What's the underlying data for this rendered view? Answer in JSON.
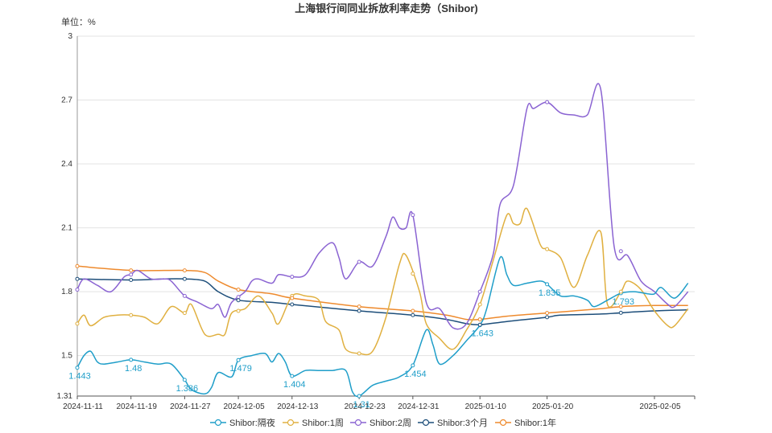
{
  "chart_data": {
    "type": "line",
    "title": "上海银行间同业拆放利率走势（Shibor)",
    "unit_label": "单位：%",
    "ylim": [
      1.31,
      3
    ],
    "yticks": [
      1.31,
      1.5,
      1.8,
      2.1,
      2.4,
      2.7,
      3
    ],
    "xlim": [
      "2024-11-11",
      "2025-02-11"
    ],
    "xticks": [
      "2024-11-11",
      "2024-11-19",
      "2024-11-27",
      "2024-12-05",
      "2024-12-13",
      "2024-12-23",
      "2024-12-31",
      "2025-01-10",
      "2025-01-20",
      "2025-02-05"
    ],
    "grid": "horizontal",
    "legend_position": "bottom",
    "series": [
      {
        "name": "Shibor:隔夜",
        "color": "#1f9ec9",
        "points": [
          [
            "2024-11-11",
            1.443
          ],
          [
            "2024-11-12",
            1.5
          ],
          [
            "2024-11-13",
            1.52
          ],
          [
            "2024-11-14",
            1.47
          ],
          [
            "2024-11-15",
            1.46
          ],
          [
            "2024-11-17",
            1.47
          ],
          [
            "2024-11-19",
            1.48
          ],
          [
            "2024-11-21",
            1.47
          ],
          [
            "2024-11-23",
            1.46
          ],
          [
            "2024-11-25",
            1.46
          ],
          [
            "2024-11-27",
            1.386
          ],
          [
            "2024-11-28",
            1.34
          ],
          [
            "2024-11-30",
            1.32
          ],
          [
            "2024-12-01",
            1.35
          ],
          [
            "2024-12-02",
            1.42
          ],
          [
            "2024-12-04",
            1.4
          ],
          [
            "2024-12-05",
            1.479
          ],
          [
            "2024-12-07",
            1.5
          ],
          [
            "2024-12-09",
            1.51
          ],
          [
            "2024-12-10",
            1.47
          ],
          [
            "2024-12-11",
            1.51
          ],
          [
            "2024-12-12",
            1.47
          ],
          [
            "2024-12-13",
            1.404
          ],
          [
            "2024-12-15",
            1.43
          ],
          [
            "2024-12-17",
            1.43
          ],
          [
            "2024-12-19",
            1.43
          ],
          [
            "2024-12-21",
            1.43
          ],
          [
            "2024-12-22",
            1.33
          ],
          [
            "2024-12-23",
            1.31
          ],
          [
            "2024-12-25",
            1.36
          ],
          [
            "2024-12-27",
            1.38
          ],
          [
            "2024-12-29",
            1.4
          ],
          [
            "2024-12-31",
            1.454
          ],
          [
            "2025-01-02",
            1.62
          ],
          [
            "2025-01-03",
            1.55
          ],
          [
            "2025-01-04",
            1.46
          ],
          [
            "2025-01-06",
            1.5
          ],
          [
            "2025-01-08",
            1.57
          ],
          [
            "2025-01-10",
            1.643
          ],
          [
            "2025-01-11",
            1.72
          ],
          [
            "2025-01-13",
            1.96
          ],
          [
            "2025-01-14",
            1.88
          ],
          [
            "2025-01-15",
            1.83
          ],
          [
            "2025-01-17",
            1.84
          ],
          [
            "2025-01-19",
            1.85
          ],
          [
            "2025-01-20",
            1.835
          ],
          [
            "2025-01-22",
            1.78
          ],
          [
            "2025-01-24",
            1.78
          ],
          [
            "2025-01-26",
            1.76
          ],
          [
            "2025-01-27",
            1.73
          ],
          [
            "2025-01-29",
            1.76
          ],
          [
            "2025-01-31",
            1.793
          ],
          [
            "2025-02-02",
            1.8
          ],
          [
            "2025-02-04",
            1.79
          ],
          [
            "2025-02-05",
            1.79
          ],
          [
            "2025-02-06",
            1.82
          ],
          [
            "2025-02-08",
            1.77
          ],
          [
            "2025-02-10",
            1.84
          ]
        ]
      },
      {
        "name": "Shibor:1周",
        "color": "#e0b040",
        "points": [
          [
            "2024-11-11",
            1.65
          ],
          [
            "2024-11-12",
            1.69
          ],
          [
            "2024-11-13",
            1.64
          ],
          [
            "2024-11-15",
            1.68
          ],
          [
            "2024-11-17",
            1.69
          ],
          [
            "2024-11-19",
            1.69
          ],
          [
            "2024-11-21",
            1.68
          ],
          [
            "2024-11-23",
            1.65
          ],
          [
            "2024-11-25",
            1.73
          ],
          [
            "2024-11-27",
            1.7
          ],
          [
            "2024-11-28",
            1.74
          ],
          [
            "2024-11-30",
            1.6
          ],
          [
            "2024-12-02",
            1.6
          ],
          [
            "2024-12-03",
            1.6
          ],
          [
            "2024-12-04",
            1.7
          ],
          [
            "2024-12-06",
            1.72
          ],
          [
            "2024-12-08",
            1.78
          ],
          [
            "2024-12-10",
            1.7
          ],
          [
            "2024-12-11",
            1.65
          ],
          [
            "2024-12-13",
            1.78
          ],
          [
            "2024-12-15",
            1.78
          ],
          [
            "2024-12-17",
            1.76
          ],
          [
            "2024-12-18",
            1.66
          ],
          [
            "2024-12-20",
            1.62
          ],
          [
            "2024-12-21",
            1.53
          ],
          [
            "2024-12-23",
            1.51
          ],
          [
            "2024-12-25",
            1.52
          ],
          [
            "2024-12-27",
            1.68
          ],
          [
            "2024-12-29",
            1.93
          ],
          [
            "2024-12-30",
            1.97
          ],
          [
            "2025-01-01",
            1.8
          ],
          [
            "2025-01-02",
            1.65
          ],
          [
            "2025-01-04",
            1.58
          ],
          [
            "2025-01-06",
            1.53
          ],
          [
            "2025-01-08",
            1.62
          ],
          [
            "2025-01-10",
            1.74
          ],
          [
            "2025-01-12",
            1.95
          ],
          [
            "2025-01-14",
            2.16
          ],
          [
            "2025-01-15",
            2.12
          ],
          [
            "2025-01-16",
            2.12
          ],
          [
            "2025-01-17",
            2.19
          ],
          [
            "2025-01-19",
            2.02
          ],
          [
            "2025-01-20",
            2.0
          ],
          [
            "2025-01-22",
            1.96
          ],
          [
            "2025-01-24",
            1.82
          ],
          [
            "2025-01-26",
            1.97
          ],
          [
            "2025-01-28",
            2.08
          ],
          [
            "2025-01-29",
            1.74
          ],
          [
            "2025-01-31",
            1.8
          ],
          [
            "2025-02-01",
            1.85
          ],
          [
            "2025-02-03",
            1.81
          ],
          [
            "2025-02-05",
            1.71
          ],
          [
            "2025-02-07",
            1.64
          ],
          [
            "2025-02-08",
            1.64
          ],
          [
            "2025-02-10",
            1.72
          ]
        ]
      },
      {
        "name": "Shibor:2周",
        "color": "#8a63d2",
        "points": [
          [
            "2024-11-11",
            1.81
          ],
          [
            "2024-11-12",
            1.86
          ],
          [
            "2024-11-14",
            1.83
          ],
          [
            "2024-11-16",
            1.8
          ],
          [
            "2024-11-18",
            1.87
          ],
          [
            "2024-11-19",
            1.88
          ],
          [
            "2024-11-20",
            1.9
          ],
          [
            "2024-11-22",
            1.86
          ],
          [
            "2024-11-24",
            1.86
          ],
          [
            "2024-11-25",
            1.85
          ],
          [
            "2024-11-27",
            1.78
          ],
          [
            "2024-11-29",
            1.75
          ],
          [
            "2024-12-01",
            1.72
          ],
          [
            "2024-12-02",
            1.74
          ],
          [
            "2024-12-03",
            1.68
          ],
          [
            "2024-12-04",
            1.75
          ],
          [
            "2024-12-06",
            1.8
          ],
          [
            "2024-12-07",
            1.85
          ],
          [
            "2024-12-08",
            1.86
          ],
          [
            "2024-12-10",
            1.84
          ],
          [
            "2024-12-11",
            1.88
          ],
          [
            "2024-12-13",
            1.87
          ],
          [
            "2024-12-15",
            1.88
          ],
          [
            "2024-12-17",
            1.98
          ],
          [
            "2024-12-19",
            2.03
          ],
          [
            "2024-12-20",
            1.96
          ],
          [
            "2024-12-21",
            1.86
          ],
          [
            "2024-12-23",
            1.94
          ],
          [
            "2024-12-25",
            1.92
          ],
          [
            "2024-12-27",
            2.06
          ],
          [
            "2024-12-28",
            2.15
          ],
          [
            "2024-12-29",
            2.1
          ],
          [
            "2024-12-30",
            2.1
          ],
          [
            "2024-12-31",
            2.16
          ],
          [
            "2025-01-02",
            1.75
          ],
          [
            "2025-01-04",
            1.72
          ],
          [
            "2025-01-06",
            1.63
          ],
          [
            "2025-01-08",
            1.65
          ],
          [
            "2025-01-10",
            1.8
          ],
          [
            "2025-01-12",
            1.98
          ],
          [
            "2025-01-13",
            2.21
          ],
          [
            "2025-01-15",
            2.3
          ],
          [
            "2025-01-17",
            2.66
          ],
          [
            "2025-01-18",
            2.66
          ],
          [
            "2025-01-20",
            2.69
          ],
          [
            "2025-01-22",
            2.64
          ],
          [
            "2025-01-24",
            2.63
          ],
          [
            "2025-01-26",
            2.63
          ],
          [
            "2025-01-28",
            2.75
          ],
          [
            "2025-01-30",
            2.01
          ],
          [
            "2025-02-01",
            1.97
          ],
          [
            "2025-02-03",
            1.85
          ],
          [
            "2025-02-05",
            1.8
          ],
          [
            "2025-02-07",
            1.74
          ],
          [
            "2025-02-08",
            1.73
          ],
          [
            "2025-02-10",
            1.8
          ]
        ]
      },
      {
        "name": "Shibor:3个月",
        "color": "#1d4e7a",
        "points": [
          [
            "2024-11-11",
            1.86
          ],
          [
            "2024-11-19",
            1.855
          ],
          [
            "2024-11-24",
            1.86
          ],
          [
            "2024-11-27",
            1.86
          ],
          [
            "2024-11-30",
            1.85
          ],
          [
            "2024-12-02",
            1.8
          ],
          [
            "2024-12-05",
            1.76
          ],
          [
            "2024-12-10",
            1.75
          ],
          [
            "2024-12-13",
            1.74
          ],
          [
            "2024-12-23",
            1.71
          ],
          [
            "2024-12-31",
            1.69
          ],
          [
            "2025-01-05",
            1.67
          ],
          [
            "2025-01-08",
            1.65
          ],
          [
            "2025-01-10",
            1.645
          ],
          [
            "2025-01-14",
            1.66
          ],
          [
            "2025-01-20",
            1.68
          ],
          [
            "2025-01-22",
            1.69
          ],
          [
            "2025-01-28",
            1.695
          ],
          [
            "2025-02-02",
            1.705
          ],
          [
            "2025-02-05",
            1.71
          ],
          [
            "2025-02-10",
            1.715
          ]
        ]
      },
      {
        "name": "Shibor:1年",
        "color": "#ee8a2d",
        "points": [
          [
            "2024-11-11",
            1.92
          ],
          [
            "2024-11-19",
            1.9
          ],
          [
            "2024-11-27",
            1.9
          ],
          [
            "2024-11-30",
            1.89
          ],
          [
            "2024-12-02",
            1.85
          ],
          [
            "2024-12-05",
            1.81
          ],
          [
            "2024-12-10",
            1.79
          ],
          [
            "2024-12-13",
            1.77
          ],
          [
            "2024-12-23",
            1.73
          ],
          [
            "2024-12-31",
            1.71
          ],
          [
            "2025-01-05",
            1.69
          ],
          [
            "2025-01-08",
            1.67
          ],
          [
            "2025-01-10",
            1.67
          ],
          [
            "2025-01-14",
            1.685
          ],
          [
            "2025-01-20",
            1.7
          ],
          [
            "2025-01-24",
            1.71
          ],
          [
            "2025-01-28",
            1.72
          ],
          [
            "2025-01-31",
            1.73
          ],
          [
            "2025-02-05",
            1.735
          ],
          [
            "2025-02-10",
            1.735
          ]
        ]
      }
    ],
    "data_labels": [
      {
        "series": 0,
        "date": "2024-11-11",
        "value": 1.443,
        "text": "1.443"
      },
      {
        "series": 0,
        "date": "2024-11-19",
        "value": 1.48,
        "text": "1.48"
      },
      {
        "series": 0,
        "date": "2024-11-27",
        "value": 1.386,
        "text": "1.386"
      },
      {
        "series": 0,
        "date": "2024-12-05",
        "value": 1.479,
        "text": "1.479"
      },
      {
        "series": 0,
        "date": "2024-12-13",
        "value": 1.404,
        "text": "1.404"
      },
      {
        "series": 0,
        "date": "2024-12-23",
        "value": 1.31,
        "text": "1.31"
      },
      {
        "series": 0,
        "date": "2024-12-31",
        "value": 1.454,
        "text": "1.454"
      },
      {
        "series": 0,
        "date": "2025-01-10",
        "value": 1.643,
        "text": "1.643"
      },
      {
        "series": 0,
        "date": "2025-01-20",
        "value": 1.835,
        "text": "1.835"
      },
      {
        "series": 0,
        "date": "2025-01-31",
        "value": 1.793,
        "text": "1.793"
      }
    ],
    "marker_dates": [
      "2024-11-11",
      "2024-11-19",
      "2024-11-27",
      "2024-12-05",
      "2024-12-13",
      "2024-12-23",
      "2024-12-31",
      "2025-01-10",
      "2025-01-20",
      "2025-01-31"
    ]
  }
}
